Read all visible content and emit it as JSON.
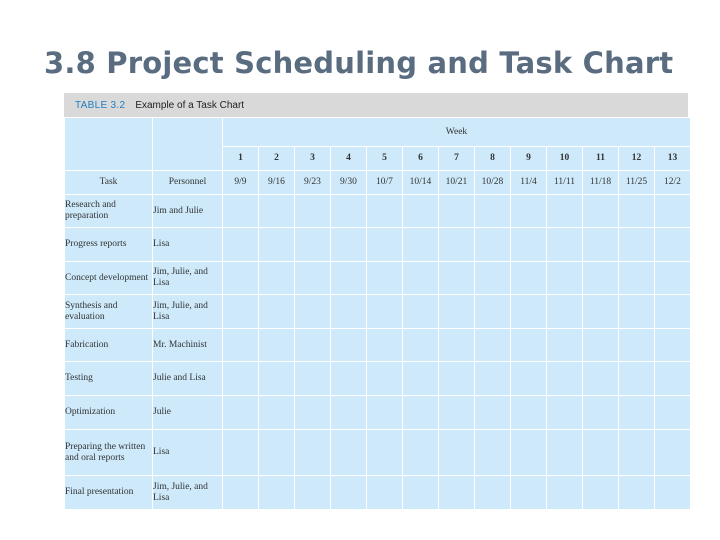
{
  "slide": {
    "title": "3.8 Project Scheduling and Task Chart"
  },
  "table": {
    "caption_number": "TABLE 3.2",
    "caption_text": "Example of a Task Chart",
    "header_task": "Task",
    "header_personnel": "Personnel",
    "header_week": "Week",
    "week_numbers": [
      "1",
      "2",
      "3",
      "4",
      "5",
      "6",
      "7",
      "8",
      "9",
      "10",
      "11",
      "12",
      "13"
    ],
    "week_dates": [
      "9/9",
      "9/16",
      "9/23",
      "9/30",
      "10/7",
      "10/14",
      "10/21",
      "10/28",
      "11/4",
      "11/11",
      "11/18",
      "11/25",
      "12/2"
    ],
    "shade_legend": {
      "none": 0,
      "light": 1,
      "dark": 2
    },
    "shade_colors": {
      "none": "#cde9fa",
      "light": "#6dcaf3",
      "dark": "#0aa8ea"
    },
    "rows": [
      {
        "task": "Research and preparation",
        "personnel": "Jim and Julie",
        "shading": [
          1,
          1,
          1,
          0,
          0,
          0,
          0,
          0,
          0,
          0,
          0,
          0,
          0
        ]
      },
      {
        "task": "Progress reports",
        "personnel": "Lisa",
        "shading": [
          0,
          2,
          2,
          2,
          2,
          2,
          2,
          2,
          2,
          2,
          2,
          0,
          0
        ]
      },
      {
        "task": "Concept development",
        "personnel": "Jim, Julie, and Lisa",
        "shading": [
          0,
          0,
          0,
          1,
          1,
          1,
          0,
          0,
          0,
          0,
          0,
          0,
          0
        ]
      },
      {
        "task": "Synthesis and evaluation",
        "personnel": "Jim, Julie, and Lisa",
        "shading": [
          0,
          0,
          0,
          0,
          2,
          2,
          2,
          2,
          2,
          2,
          2,
          0,
          0
        ]
      },
      {
        "task": "Fabrication",
        "personnel": "Mr. Machinist",
        "shading": [
          0,
          0,
          0,
          0,
          0,
          0,
          1,
          1,
          1,
          1,
          1,
          0,
          0
        ]
      },
      {
        "task": "Testing",
        "personnel": "Julie and Lisa",
        "shading": [
          0,
          0,
          0,
          0,
          0,
          0,
          0,
          2,
          2,
          2,
          2,
          0,
          0
        ]
      },
      {
        "task": "Optimization",
        "personnel": "Julie",
        "shading": [
          0,
          0,
          0,
          0,
          0,
          0,
          0,
          0,
          0,
          1,
          1,
          0,
          0
        ]
      },
      {
        "task": "Preparing the written and oral reports",
        "personnel": "Lisa",
        "shading": [
          0,
          0,
          0,
          0,
          0,
          0,
          0,
          0,
          0,
          0,
          0,
          2,
          0
        ]
      },
      {
        "task": "Final presentation",
        "personnel": "Jim, Julie, and Lisa",
        "shading": [
          0,
          0,
          0,
          0,
          0,
          0,
          0,
          0,
          0,
          0,
          0,
          0,
          1
        ]
      }
    ]
  }
}
